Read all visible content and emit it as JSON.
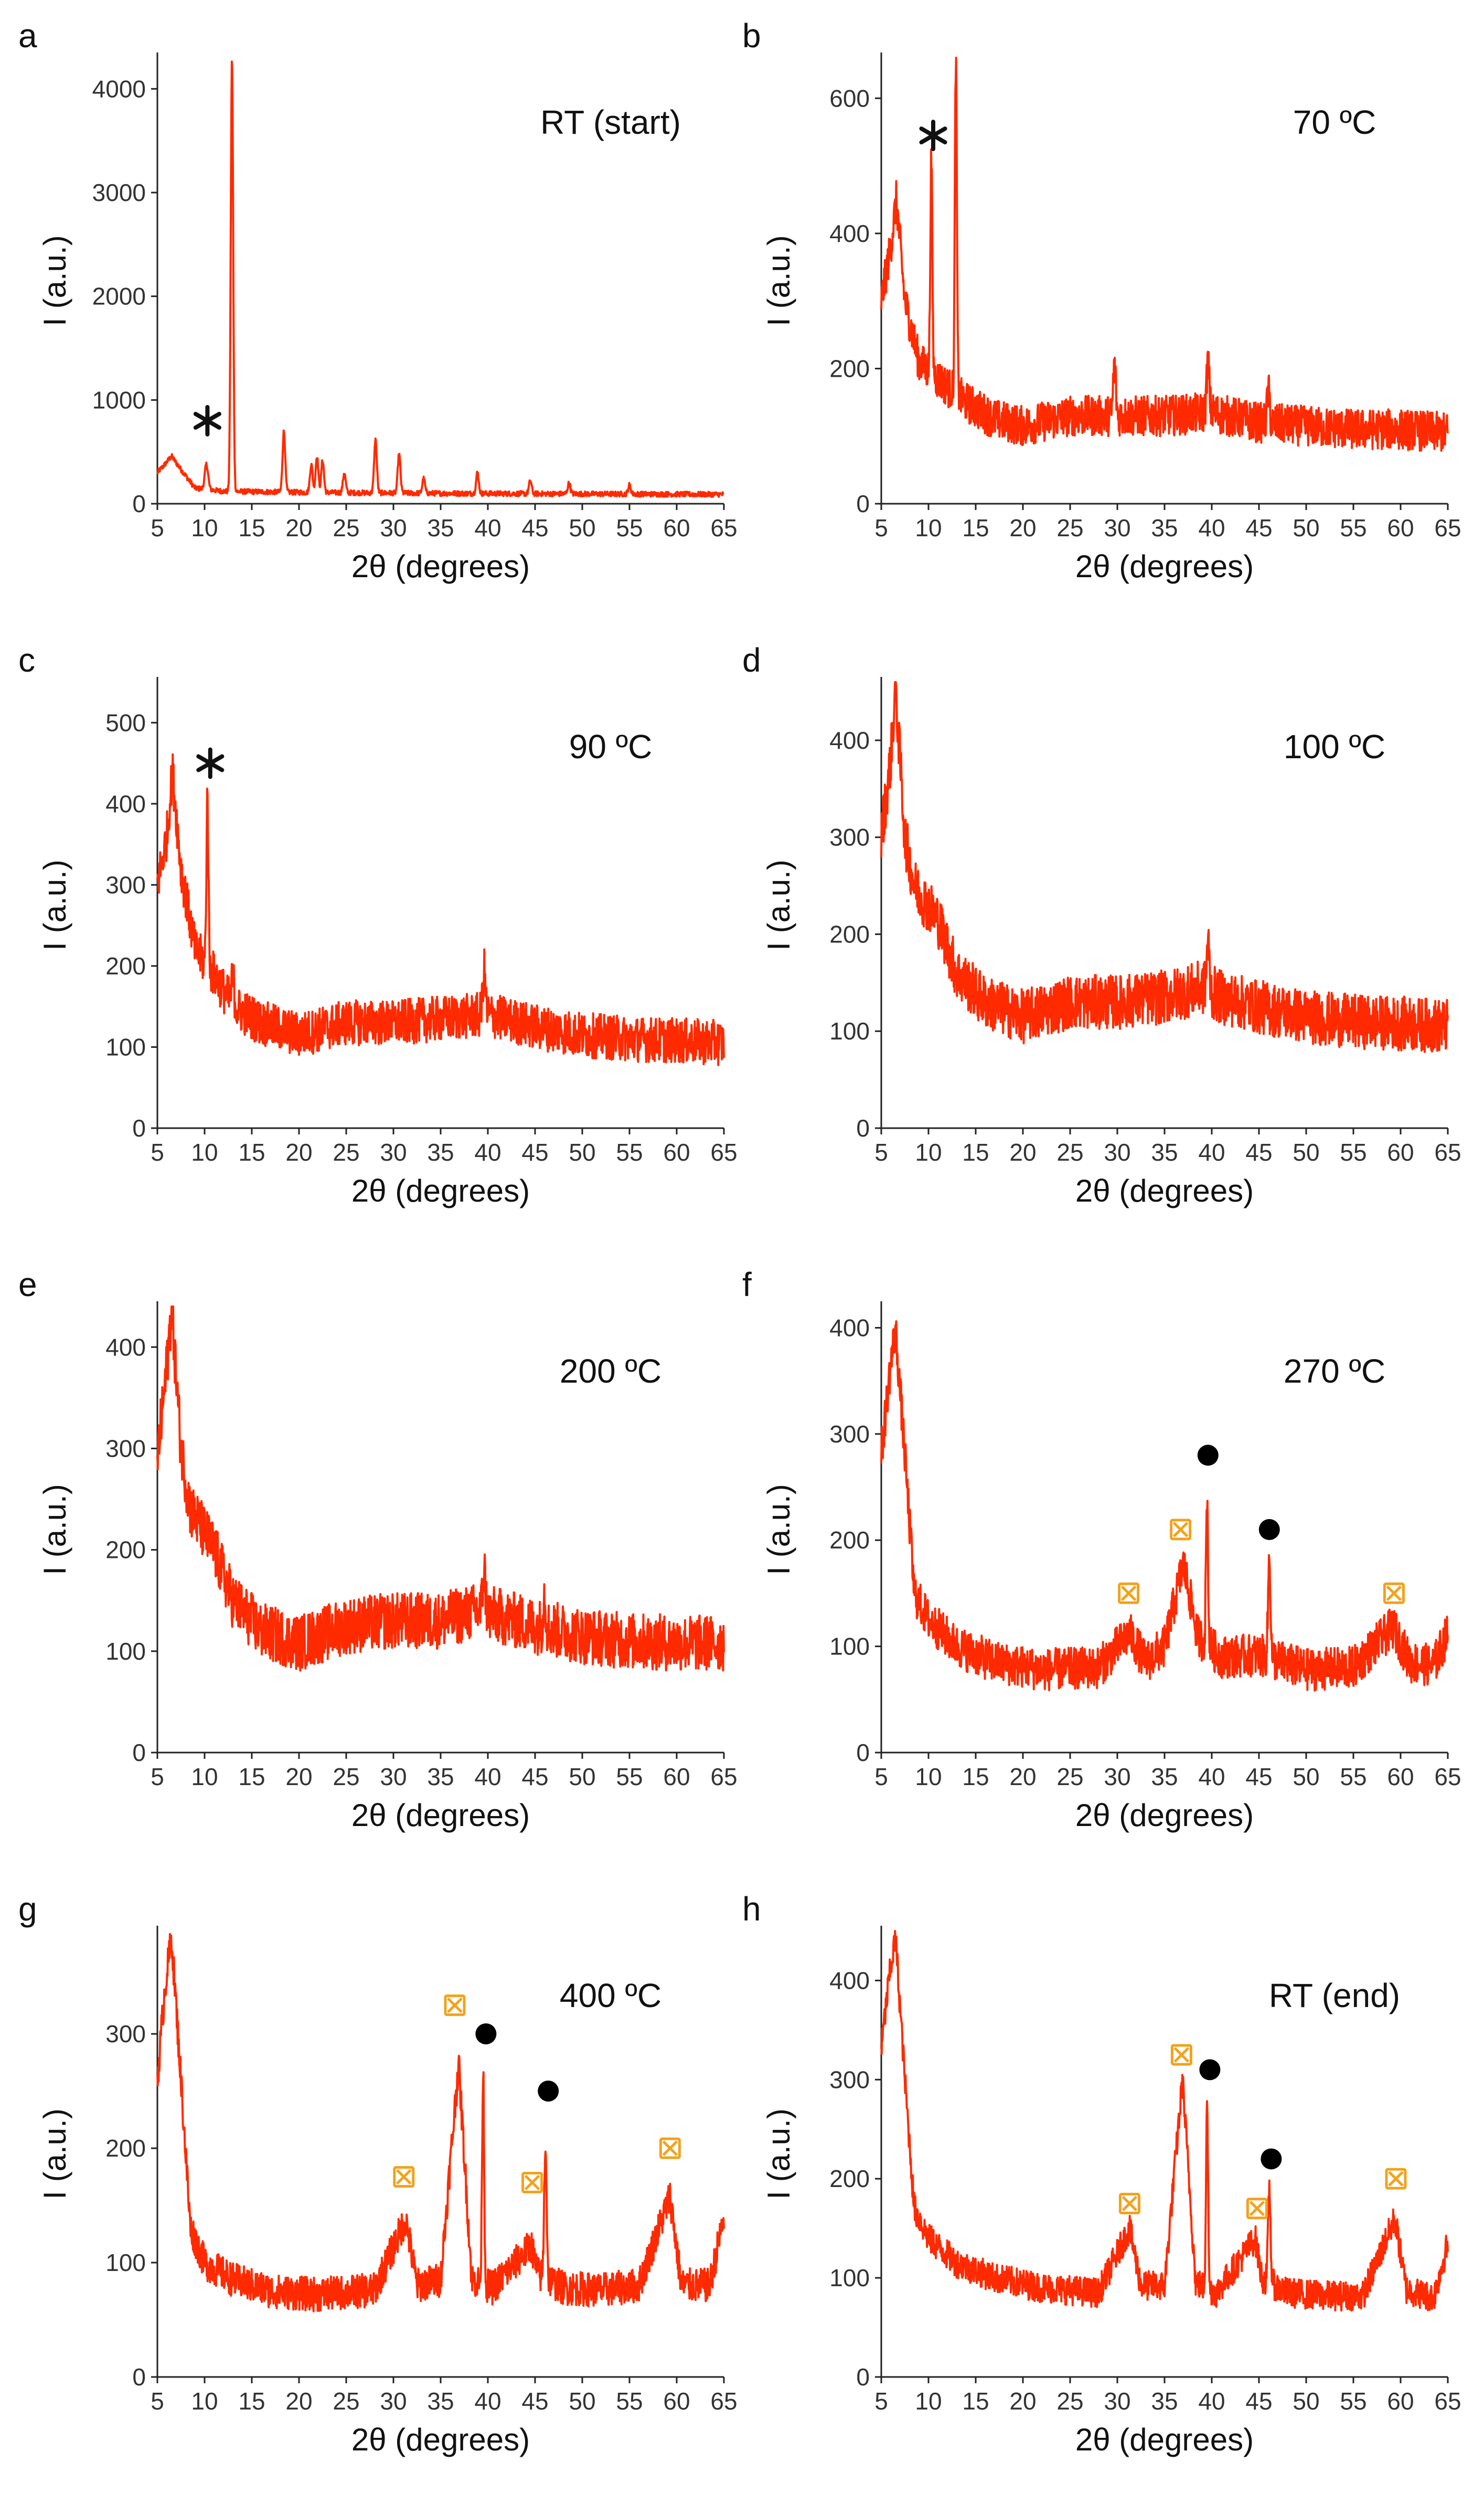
{
  "figure": {
    "xlabel": "2θ (degrees)",
    "ylabel": "I (a.u.)",
    "xticks": [
      5,
      10,
      15,
      20,
      25,
      30,
      35,
      40,
      45,
      50,
      55,
      60,
      65
    ],
    "trace_color": "#ff2a00",
    "marker_colors": {
      "asterisk": "#111111",
      "dot": "#000000",
      "crossed-square": "#f3a21c"
    }
  },
  "chart_data": [
    {
      "panel": "a",
      "label": "RT (start)",
      "type": "line",
      "xlabel": "2θ (degrees)",
      "ylabel": "I (a.u.)",
      "xlim": [
        5,
        65
      ],
      "ylim": [
        0,
        4300
      ],
      "yticks": [
        0,
        1000,
        2000,
        3000,
        4000
      ],
      "baseline": [
        [
          5,
          300
        ],
        [
          5.8,
          380
        ],
        [
          6.5,
          460
        ],
        [
          7.5,
          330
        ],
        [
          9,
          150
        ],
        [
          12,
          120
        ],
        [
          20,
          110
        ],
        [
          35,
          100
        ],
        [
          50,
          95
        ],
        [
          65,
          90
        ]
      ],
      "peaks": [
        [
          10.2,
          380,
          0.25
        ],
        [
          12.9,
          4300,
          0.18
        ],
        [
          18.4,
          700,
          0.2
        ],
        [
          21.3,
          380,
          0.2
        ],
        [
          21.9,
          460,
          0.2
        ],
        [
          22.5,
          420,
          0.2
        ],
        [
          24.8,
          300,
          0.2
        ],
        [
          28.1,
          620,
          0.2
        ],
        [
          30.6,
          480,
          0.2
        ],
        [
          33.2,
          240,
          0.2
        ],
        [
          38.9,
          300,
          0.2
        ],
        [
          44.5,
          220,
          0.2
        ],
        [
          48.6,
          200,
          0.2
        ],
        [
          55.0,
          180,
          0.2
        ]
      ],
      "noise": 25,
      "endRise": 0,
      "markers": [
        {
          "type": "asterisk",
          "x": 10.3,
          "y": 800
        }
      ]
    },
    {
      "panel": "b",
      "label": "70 ºC",
      "type": "line",
      "xlabel": "2θ (degrees)",
      "ylabel": "I (a.u.)",
      "xlim": [
        5,
        65
      ],
      "ylim": [
        0,
        660
      ],
      "yticks": [
        0,
        200,
        400,
        600
      ],
      "baseline": [
        [
          5,
          300
        ],
        [
          6,
          380
        ],
        [
          6.6,
          450
        ],
        [
          7.5,
          300
        ],
        [
          9,
          210
        ],
        [
          11,
          185
        ],
        [
          14,
          150
        ],
        [
          17,
          125
        ],
        [
          20,
          115
        ],
        [
          25,
          130
        ],
        [
          30,
          130
        ],
        [
          35,
          130
        ],
        [
          40,
          135
        ],
        [
          45,
          120
        ],
        [
          50,
          115
        ],
        [
          55,
          110
        ],
        [
          60,
          110
        ],
        [
          65,
          105
        ]
      ],
      "peaks": [
        [
          10.3,
          510,
          0.15
        ],
        [
          12.9,
          660,
          0.15
        ],
        [
          29.7,
          205,
          0.2
        ],
        [
          39.6,
          210,
          0.2
        ],
        [
          46.0,
          165,
          0.2
        ]
      ],
      "noise": 30,
      "endRise": 0,
      "markers": [
        {
          "type": "asterisk",
          "x": 10.5,
          "y": 545
        }
      ]
    },
    {
      "panel": "c",
      "label": "90 ºC",
      "type": "line",
      "xlabel": "2θ (degrees)",
      "ylabel": "I (a.u.)",
      "xlim": [
        5,
        65
      ],
      "ylim": [
        0,
        550
      ],
      "yticks": [
        0,
        100,
        200,
        300,
        400,
        500
      ],
      "baseline": [
        [
          5,
          300
        ],
        [
          6,
          360
        ],
        [
          6.6,
          440
        ],
        [
          7.5,
          320
        ],
        [
          9,
          220
        ],
        [
          11,
          190
        ],
        [
          13,
          150
        ],
        [
          16,
          130
        ],
        [
          20,
          115
        ],
        [
          25,
          130
        ],
        [
          30,
          130
        ],
        [
          35,
          135
        ],
        [
          40,
          140
        ],
        [
          45,
          125
        ],
        [
          50,
          115
        ],
        [
          55,
          110
        ],
        [
          60,
          108
        ],
        [
          65,
          105
        ]
      ],
      "peaks": [
        [
          10.3,
          410,
          0.15
        ],
        [
          13.0,
          185,
          0.2
        ],
        [
          39.6,
          195,
          0.2
        ]
      ],
      "noise": 28,
      "endRise": 0,
      "markers": [
        {
          "type": "asterisk",
          "x": 10.6,
          "y": 450
        }
      ]
    },
    {
      "panel": "d",
      "label": "100 ºC",
      "type": "line",
      "xlabel": "2θ (degrees)",
      "ylabel": "I (a.u.)",
      "xlim": [
        5,
        65
      ],
      "ylim": [
        0,
        460
      ],
      "yticks": [
        0,
        100,
        200,
        300,
        400
      ],
      "baseline": [
        [
          5,
          300
        ],
        [
          6,
          380
        ],
        [
          6.5,
          455
        ],
        [
          7.5,
          300
        ],
        [
          8.5,
          250
        ],
        [
          11,
          215
        ],
        [
          13,
          160
        ],
        [
          16,
          130
        ],
        [
          20,
          115
        ],
        [
          25,
          130
        ],
        [
          30,
          130
        ],
        [
          35,
          135
        ],
        [
          39,
          145
        ],
        [
          41,
          135
        ],
        [
          45,
          125
        ],
        [
          50,
          115
        ],
        [
          55,
          110
        ],
        [
          60,
          108
        ],
        [
          65,
          105
        ]
      ],
      "peaks": [
        [
          39.6,
          190,
          0.2
        ]
      ],
      "noise": 28,
      "endRise": 0,
      "markers": []
    },
    {
      "panel": "e",
      "label": "200 ºC",
      "type": "line",
      "xlabel": "2θ (degrees)",
      "ylabel": "I (a.u.)",
      "xlim": [
        5,
        65
      ],
      "ylim": [
        0,
        440
      ],
      "yticks": [
        0,
        100,
        200,
        300,
        400
      ],
      "baseline": [
        [
          5,
          290
        ],
        [
          6,
          380
        ],
        [
          6.5,
          440
        ],
        [
          7.5,
          300
        ],
        [
          8.5,
          240
        ],
        [
          11,
          200
        ],
        [
          13,
          150
        ],
        [
          16,
          120
        ],
        [
          20,
          108
        ],
        [
          25,
          125
        ],
        [
          30,
          130
        ],
        [
          35,
          130
        ],
        [
          39,
          140
        ],
        [
          41,
          135
        ],
        [
          45,
          125
        ],
        [
          50,
          115
        ],
        [
          55,
          110
        ],
        [
          60,
          108
        ],
        [
          65,
          108
        ]
      ],
      "peaks": [
        [
          39.6,
          180,
          0.2
        ],
        [
          46.0,
          155,
          0.2
        ]
      ],
      "noise": 28,
      "endRise": 0,
      "markers": []
    },
    {
      "panel": "f",
      "label": "270 ºC",
      "type": "line",
      "xlabel": "2θ (degrees)",
      "ylabel": "I (a.u.)",
      "xlim": [
        5,
        65
      ],
      "ylim": [
        0,
        420
      ],
      "yticks": [
        0,
        100,
        200,
        300,
        400
      ],
      "baseline": [
        [
          5,
          280
        ],
        [
          5.8,
          350
        ],
        [
          6.5,
          400
        ],
        [
          7.5,
          280
        ],
        [
          8.5,
          150
        ],
        [
          10,
          125
        ],
        [
          13,
          100
        ],
        [
          17,
          85
        ],
        [
          22,
          78
        ],
        [
          28,
          80
        ],
        [
          31.3,
          112
        ],
        [
          33,
          85
        ],
        [
          35,
          100
        ],
        [
          37,
          178
        ],
        [
          38.5,
          110
        ],
        [
          41,
          90
        ],
        [
          45,
          92
        ],
        [
          50,
          78
        ],
        [
          55,
          80
        ],
        [
          59.2,
          118
        ],
        [
          61,
          85
        ],
        [
          63.5,
          82
        ],
        [
          65,
          112
        ]
      ],
      "peaks": [
        [
          39.5,
          240,
          0.15
        ],
        [
          46.1,
          185,
          0.18
        ]
      ],
      "noise": 20,
      "endRise": 0,
      "markers": [
        {
          "type": "crossed-square",
          "x": 31.2,
          "y": 150
        },
        {
          "type": "crossed-square",
          "x": 36.7,
          "y": 210
        },
        {
          "type": "dot",
          "x": 39.6,
          "y": 280
        },
        {
          "type": "dot",
          "x": 46.1,
          "y": 210
        },
        {
          "type": "crossed-square",
          "x": 59.3,
          "y": 150
        }
      ]
    },
    {
      "panel": "g",
      "label": "400 ºC",
      "type": "line",
      "xlabel": "2θ (degrees)",
      "ylabel": "I (a.u.)",
      "xlim": [
        5,
        65
      ],
      "ylim": [
        0,
        390
      ],
      "yticks": [
        0,
        100,
        200,
        300
      ],
      "baseline": [
        [
          5,
          260
        ],
        [
          5.8,
          340
        ],
        [
          6.5,
          385
        ],
        [
          7.5,
          260
        ],
        [
          8.5,
          130
        ],
        [
          10,
          100
        ],
        [
          13,
          85
        ],
        [
          17,
          75
        ],
        [
          22,
          72
        ],
        [
          28,
          76
        ],
        [
          31.3,
          138
        ],
        [
          32.5,
          80
        ],
        [
          35,
          85
        ],
        [
          36.9,
          275
        ],
        [
          38.3,
          85
        ],
        [
          40.5,
          78
        ],
        [
          44.6,
          115
        ],
        [
          45.3,
          90
        ],
        [
          48,
          78
        ],
        [
          52,
          76
        ],
        [
          56,
          80
        ],
        [
          59.3,
          158
        ],
        [
          60.5,
          80
        ],
        [
          63.5,
          80
        ],
        [
          65,
          140
        ]
      ],
      "peaks": [
        [
          39.5,
          270,
          0.15
        ],
        [
          46.1,
          205,
          0.18
        ]
      ],
      "noise": 15,
      "endRise": 0,
      "markers": [
        {
          "type": "crossed-square",
          "x": 31.1,
          "y": 175
        },
        {
          "type": "crossed-square",
          "x": 36.5,
          "y": 325
        },
        {
          "type": "dot",
          "x": 39.8,
          "y": 300
        },
        {
          "type": "crossed-square",
          "x": 44.7,
          "y": 170
        },
        {
          "type": "dot",
          "x": 46.4,
          "y": 250
        },
        {
          "type": "crossed-square",
          "x": 59.3,
          "y": 200
        }
      ]
    },
    {
      "panel": "h",
      "label": "RT (end)",
      "type": "line",
      "xlabel": "2θ (degrees)",
      "ylabel": "I (a.u.)",
      "xlim": [
        5,
        65
      ],
      "ylim": [
        0,
        450
      ],
      "yticks": [
        0,
        100,
        200,
        300,
        400
      ],
      "baseline": [
        [
          5,
          330
        ],
        [
          5.8,
          400
        ],
        [
          6.5,
          445
        ],
        [
          7.5,
          300
        ],
        [
          8.5,
          170
        ],
        [
          10,
          140
        ],
        [
          13,
          115
        ],
        [
          17,
          100
        ],
        [
          22,
          90
        ],
        [
          28,
          85
        ],
        [
          31.3,
          150
        ],
        [
          32.5,
          92
        ],
        [
          35,
          92
        ],
        [
          36.9,
          300
        ],
        [
          38.3,
          95
        ],
        [
          40.5,
          85
        ],
        [
          44.6,
          140
        ],
        [
          45.3,
          100
        ],
        [
          48,
          85
        ],
        [
          52,
          82
        ],
        [
          56,
          82
        ],
        [
          59.4,
          160
        ],
        [
          60.6,
          88
        ],
        [
          63.5,
          80
        ],
        [
          65,
          135
        ]
      ],
      "peaks": [
        [
          39.5,
          285,
          0.15
        ],
        [
          46.1,
          190,
          0.18
        ]
      ],
      "noise": 15,
      "endRise": 0,
      "markers": [
        {
          "type": "crossed-square",
          "x": 31.3,
          "y": 175
        },
        {
          "type": "crossed-square",
          "x": 36.8,
          "y": 325
        },
        {
          "type": "dot",
          "x": 39.8,
          "y": 310
        },
        {
          "type": "crossed-square",
          "x": 44.8,
          "y": 170
        },
        {
          "type": "dot",
          "x": 46.3,
          "y": 220
        },
        {
          "type": "crossed-square",
          "x": 59.5,
          "y": 200
        }
      ]
    }
  ]
}
